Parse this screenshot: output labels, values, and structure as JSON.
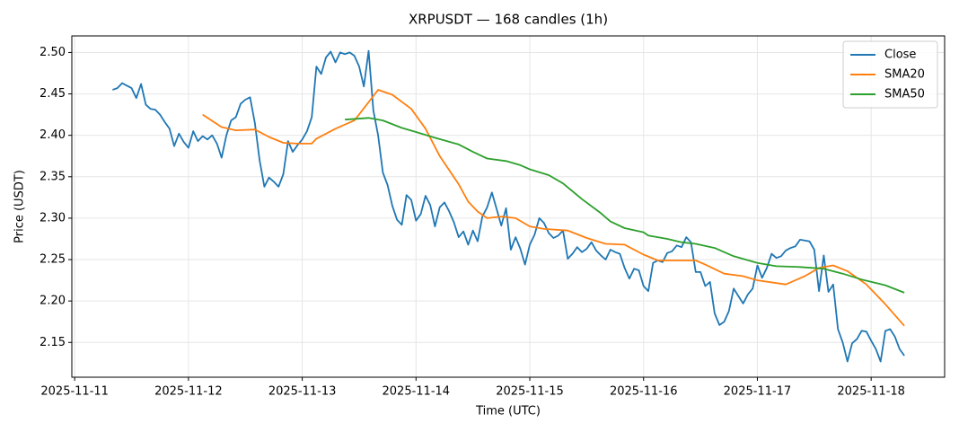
{
  "chart_data": {
    "type": "line",
    "title": "XRPUSDT — 168 candles (1h)",
    "x_label": "Time (UTC)",
    "y_label": "Price (USDT)",
    "xlim": [
      -8.6,
      175.5
    ],
    "ylim": [
      2.108,
      2.52
    ],
    "grid": true,
    "legend": "upper right",
    "xticks": [
      {
        "value": -8,
        "label": "2025-11-11"
      },
      {
        "value": 16,
        "label": "2025-11-12"
      },
      {
        "value": 40,
        "label": "2025-11-13"
      },
      {
        "value": 64,
        "label": "2025-11-14"
      },
      {
        "value": 88,
        "label": "2025-11-15"
      },
      {
        "value": 112,
        "label": "2025-11-16"
      },
      {
        "value": 136,
        "label": "2025-11-17"
      },
      {
        "value": 160,
        "label": "2025-11-18"
      }
    ],
    "yticks": [
      2.15,
      {
        "value": 2.2,
        "label": "2.20"
      },
      2.25,
      {
        "value": 2.3,
        "label": "2.30"
      },
      2.35,
      {
        "value": 2.4,
        "label": "2.40"
      },
      2.45,
      {
        "value": 2.5,
        "label": "2.50"
      }
    ],
    "series": [
      {
        "name": "Close",
        "color": "#1f77b4",
        "values": [
          2.455,
          2.457,
          2.463,
          2.46,
          2.457,
          2.445,
          2.462,
          2.437,
          2.432,
          2.431,
          2.425,
          2.416,
          2.408,
          2.387,
          2.402,
          2.392,
          2.385,
          2.405,
          2.393,
          2.399,
          2.395,
          2.4,
          2.39,
          2.373,
          2.4,
          2.418,
          2.422,
          2.438,
          2.443,
          2.446,
          2.415,
          2.37,
          2.338,
          2.349,
          2.344,
          2.338,
          2.353,
          2.393,
          2.38,
          2.388,
          2.395,
          2.405,
          2.422,
          2.483,
          2.474,
          2.494,
          2.501,
          2.488,
          2.5,
          2.498,
          2.5,
          2.496,
          2.483,
          2.459,
          2.502,
          2.43,
          2.4,
          2.355,
          2.34,
          2.315,
          2.298,
          2.292,
          2.328,
          2.322,
          2.297,
          2.305,
          2.327,
          2.316,
          2.29,
          2.313,
          2.319,
          2.308,
          2.295,
          2.277,
          2.284,
          2.268,
          2.285,
          2.272,
          2.302,
          2.313,
          2.331,
          2.311,
          2.291,
          2.312,
          2.262,
          2.277,
          2.263,
          2.244,
          2.268,
          2.28,
          2.3,
          2.294,
          2.282,
          2.276,
          2.279,
          2.285,
          2.251,
          2.257,
          2.265,
          2.259,
          2.263,
          2.271,
          2.261,
          2.255,
          2.25,
          2.262,
          2.259,
          2.257,
          2.24,
          2.227,
          2.239,
          2.237,
          2.218,
          2.212,
          2.246,
          2.249,
          2.247,
          2.258,
          2.26,
          2.267,
          2.265,
          2.277,
          2.271,
          2.235,
          2.235,
          2.218,
          2.223,
          2.185,
          2.171,
          2.175,
          2.188,
          2.215,
          2.206,
          2.197,
          2.208,
          2.215,
          2.243,
          2.228,
          2.24,
          2.257,
          2.252,
          2.254,
          2.261,
          2.264,
          2.266,
          2.274,
          2.273,
          2.272,
          2.262,
          2.212,
          2.255,
          2.211,
          2.22,
          2.166,
          2.15,
          2.127,
          2.149,
          2.154,
          2.164,
          2.163,
          2.152,
          2.142,
          2.127,
          2.164,
          2.166,
          2.157,
          2.142,
          2.134
        ]
      },
      {
        "name": "SMA20",
        "color": "#ff7f0e",
        "x": [
          19,
          23,
          26,
          30,
          33,
          36,
          39,
          42,
          43,
          47,
          51,
          54,
          56,
          59,
          63,
          66,
          69,
          73,
          75,
          77,
          79,
          82,
          85,
          88,
          91,
          96,
          100,
          104,
          108,
          112,
          115,
          123,
          125,
          129,
          133,
          136,
          142,
          146,
          149,
          152,
          155,
          159,
          163,
          167
        ],
        "values": [
          2.425,
          2.41,
          2.406,
          2.407,
          2.398,
          2.391,
          2.39,
          2.39,
          2.396,
          2.408,
          2.418,
          2.44,
          2.455,
          2.449,
          2.432,
          2.408,
          2.375,
          2.341,
          2.32,
          2.308,
          2.3,
          2.302,
          2.3,
          2.29,
          2.287,
          2.285,
          2.276,
          2.269,
          2.268,
          2.256,
          2.249,
          2.249,
          2.244,
          2.233,
          2.23,
          2.225,
          2.22,
          2.23,
          2.24,
          2.243,
          2.236,
          2.22,
          2.196,
          2.17
        ]
      },
      {
        "name": "SMA50",
        "color": "#2ca02c",
        "x": [
          49,
          54,
          57,
          61,
          64,
          68,
          73,
          76,
          79,
          83,
          86,
          88,
          92,
          95,
          99,
          103,
          105,
          108,
          112,
          113,
          117,
          120,
          123,
          127,
          131,
          136,
          140,
          145,
          150,
          154,
          158,
          163,
          167
        ],
        "values": [
          2.419,
          2.421,
          2.418,
          2.409,
          2.404,
          2.397,
          2.389,
          2.38,
          2.372,
          2.369,
          2.364,
          2.359,
          2.352,
          2.342,
          2.323,
          2.306,
          2.296,
          2.288,
          2.283,
          2.279,
          2.275,
          2.271,
          2.269,
          2.264,
          2.254,
          2.246,
          2.242,
          2.241,
          2.239,
          2.233,
          2.226,
          2.219,
          2.21
        ]
      }
    ]
  }
}
